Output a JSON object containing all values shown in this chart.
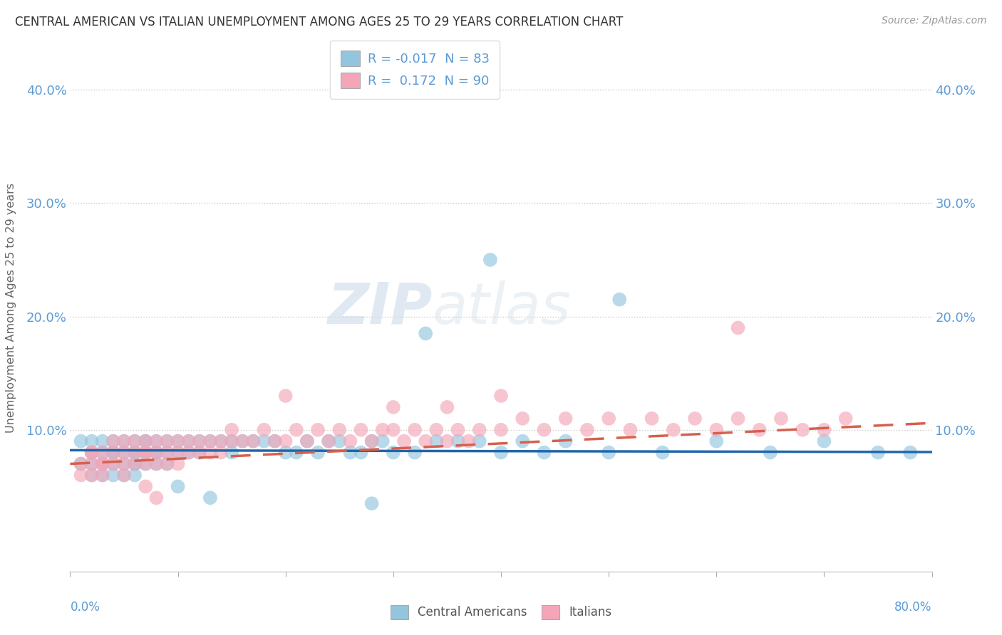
{
  "title": "CENTRAL AMERICAN VS ITALIAN UNEMPLOYMENT AMONG AGES 25 TO 29 YEARS CORRELATION CHART",
  "source": "Source: ZipAtlas.com",
  "ylabel": "Unemployment Among Ages 25 to 29 years",
  "ytick_labels": [
    "10.0%",
    "20.0%",
    "30.0%",
    "40.0%"
  ],
  "ytick_values": [
    0.1,
    0.2,
    0.3,
    0.4
  ],
  "xlim": [
    0.0,
    0.8
  ],
  "ylim": [
    -0.025,
    0.44
  ],
  "legend_r1": "R = -0.017  N = 83",
  "legend_r2": "R =  0.172  N = 90",
  "blue_color": "#92c5de",
  "pink_color": "#f4a6b8",
  "blue_line_color": "#2166ac",
  "pink_line_color": "#d6604d",
  "axis_label_color": "#5b9bd5",
  "ca_x": [
    0.01,
    0.01,
    0.02,
    0.02,
    0.02,
    0.02,
    0.03,
    0.03,
    0.03,
    0.03,
    0.04,
    0.04,
    0.04,
    0.04,
    0.04,
    0.05,
    0.05,
    0.05,
    0.05,
    0.06,
    0.06,
    0.06,
    0.06,
    0.06,
    0.06,
    0.07,
    0.07,
    0.07,
    0.07,
    0.07,
    0.08,
    0.08,
    0.08,
    0.08,
    0.09,
    0.09,
    0.09,
    0.1,
    0.1,
    0.11,
    0.11,
    0.12,
    0.12,
    0.13,
    0.14,
    0.15,
    0.15,
    0.16,
    0.17,
    0.18,
    0.19,
    0.2,
    0.21,
    0.22,
    0.23,
    0.24,
    0.25,
    0.26,
    0.27,
    0.28,
    0.29,
    0.3,
    0.32,
    0.34,
    0.36,
    0.38,
    0.4,
    0.42,
    0.44,
    0.46,
    0.5,
    0.55,
    0.6,
    0.65,
    0.7,
    0.75,
    0.78,
    0.39,
    0.51,
    0.33,
    0.1,
    0.13,
    0.28
  ],
  "ca_y": [
    0.07,
    0.09,
    0.06,
    0.08,
    0.07,
    0.09,
    0.06,
    0.08,
    0.07,
    0.09,
    0.07,
    0.08,
    0.09,
    0.06,
    0.08,
    0.08,
    0.07,
    0.09,
    0.06,
    0.07,
    0.08,
    0.09,
    0.06,
    0.08,
    0.07,
    0.08,
    0.09,
    0.07,
    0.08,
    0.09,
    0.08,
    0.07,
    0.09,
    0.08,
    0.08,
    0.07,
    0.09,
    0.08,
    0.09,
    0.08,
    0.09,
    0.08,
    0.09,
    0.09,
    0.09,
    0.08,
    0.09,
    0.09,
    0.09,
    0.09,
    0.09,
    0.08,
    0.08,
    0.09,
    0.08,
    0.09,
    0.09,
    0.08,
    0.08,
    0.09,
    0.09,
    0.08,
    0.08,
    0.09,
    0.09,
    0.09,
    0.08,
    0.09,
    0.08,
    0.09,
    0.08,
    0.08,
    0.09,
    0.08,
    0.09,
    0.08,
    0.08,
    0.25,
    0.215,
    0.185,
    0.05,
    0.04,
    0.035
  ],
  "it_x": [
    0.01,
    0.01,
    0.02,
    0.02,
    0.02,
    0.02,
    0.03,
    0.03,
    0.03,
    0.03,
    0.04,
    0.04,
    0.04,
    0.05,
    0.05,
    0.05,
    0.05,
    0.06,
    0.06,
    0.06,
    0.07,
    0.07,
    0.07,
    0.07,
    0.08,
    0.08,
    0.08,
    0.09,
    0.09,
    0.09,
    0.1,
    0.1,
    0.1,
    0.11,
    0.11,
    0.12,
    0.12,
    0.13,
    0.13,
    0.14,
    0.14,
    0.15,
    0.15,
    0.16,
    0.17,
    0.18,
    0.19,
    0.2,
    0.21,
    0.22,
    0.23,
    0.24,
    0.25,
    0.26,
    0.27,
    0.28,
    0.29,
    0.3,
    0.31,
    0.32,
    0.33,
    0.34,
    0.35,
    0.36,
    0.37,
    0.38,
    0.4,
    0.42,
    0.44,
    0.46,
    0.48,
    0.5,
    0.52,
    0.54,
    0.56,
    0.58,
    0.6,
    0.62,
    0.64,
    0.66,
    0.68,
    0.7,
    0.72,
    0.62,
    0.2,
    0.07,
    0.08,
    0.3,
    0.35,
    0.4
  ],
  "it_y": [
    0.07,
    0.06,
    0.08,
    0.07,
    0.06,
    0.08,
    0.07,
    0.08,
    0.06,
    0.07,
    0.08,
    0.07,
    0.09,
    0.07,
    0.08,
    0.09,
    0.06,
    0.08,
    0.09,
    0.07,
    0.08,
    0.09,
    0.07,
    0.08,
    0.09,
    0.08,
    0.07,
    0.09,
    0.08,
    0.07,
    0.09,
    0.08,
    0.07,
    0.09,
    0.08,
    0.09,
    0.08,
    0.09,
    0.08,
    0.09,
    0.08,
    0.09,
    0.1,
    0.09,
    0.09,
    0.1,
    0.09,
    0.09,
    0.1,
    0.09,
    0.1,
    0.09,
    0.1,
    0.09,
    0.1,
    0.09,
    0.1,
    0.1,
    0.09,
    0.1,
    0.09,
    0.1,
    0.09,
    0.1,
    0.09,
    0.1,
    0.1,
    0.11,
    0.1,
    0.11,
    0.1,
    0.11,
    0.1,
    0.11,
    0.1,
    0.11,
    0.1,
    0.11,
    0.1,
    0.11,
    0.1,
    0.1,
    0.11,
    0.19,
    0.13,
    0.05,
    0.04,
    0.12,
    0.12,
    0.13
  ]
}
